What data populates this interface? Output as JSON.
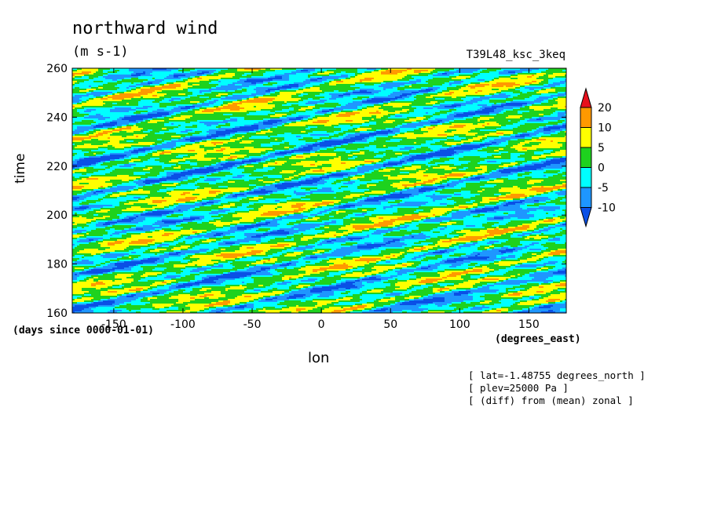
{
  "chart_data": {
    "type": "heatmap",
    "title": "northward wind",
    "subtitle": "(m s-1)",
    "run_label": "T39L48_ksc_3keq",
    "xlabel": "lon",
    "ylabel": "time",
    "x_units": "(degrees_east)",
    "y_units": "(days since 0000-01-01)",
    "xlim": [
      -180,
      177
    ],
    "ylim": [
      160,
      260
    ],
    "x_ticks": [
      -150,
      -100,
      -50,
      0,
      50,
      100,
      150
    ],
    "y_ticks": [
      160,
      180,
      200,
      220,
      240,
      260
    ],
    "colorbar": {
      "levels": [
        "20",
        "10",
        "5",
        "0",
        "-5",
        "-10"
      ],
      "colors": [
        "#e8101c",
        "#ff9900",
        "#ffff00",
        "#1ed21e",
        "#00ffff",
        "#1e96ff",
        "#0a50e6"
      ]
    },
    "annotations": [
      "[ lat=-1.48755 degrees_north ]",
      "[ plev=25000 Pa ]",
      "[ (diff) from (mean) zonal ]"
    ]
  }
}
